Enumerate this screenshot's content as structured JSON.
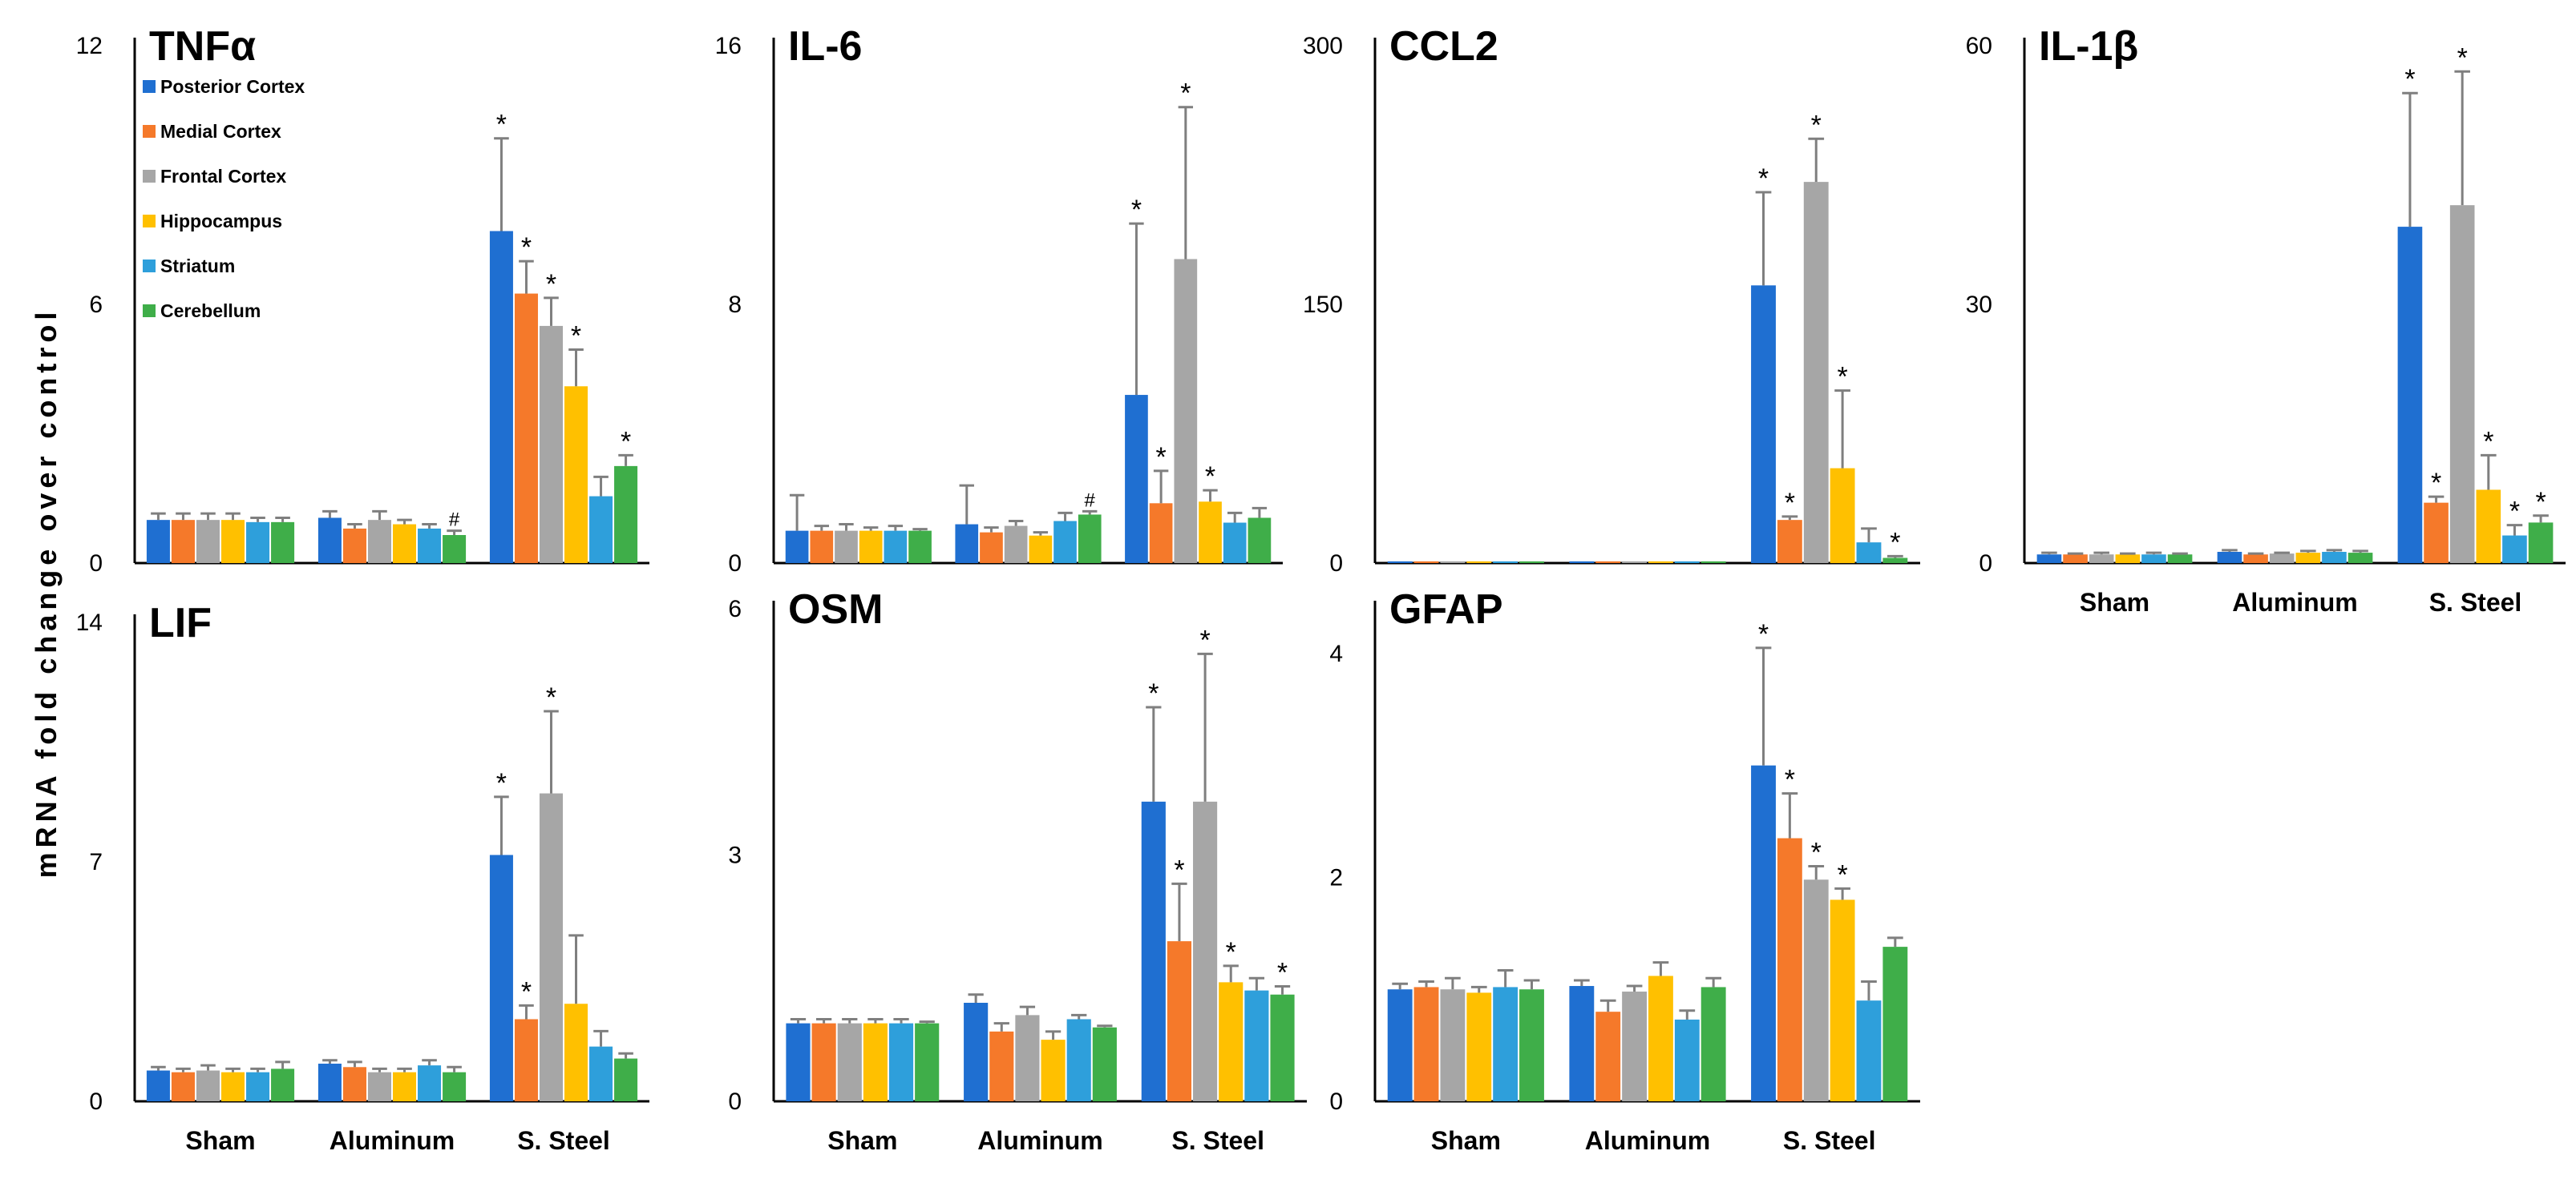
{
  "figure": {
    "ylabel": "mRNA fold change over control",
    "legend": [
      {
        "name": "Posterior Cortex",
        "color": "#1f6fd1"
      },
      {
        "name": "Medial Cortex",
        "color": "#f5792a"
      },
      {
        "name": "Frontal Cortex",
        "color": "#a6a6a6"
      },
      {
        "name": "Hippocampus",
        "color": "#ffc000"
      },
      {
        "name": "Striatum",
        "color": "#2e9fdb"
      },
      {
        "name": "Cerebellum",
        "color": "#3fae49"
      }
    ],
    "x_label_rows": [
      {
        "position": "top-row-under-IL-1β",
        "labels": [
          "Sham",
          "Aluminum",
          "S. Steel"
        ]
      },
      {
        "position": "bottom-row",
        "labels": [
          "Sham",
          "Aluminum",
          "S. Steel"
        ]
      }
    ]
  },
  "chart_data": [
    {
      "type": "bar",
      "title": "TNFα",
      "ylim": [
        0,
        12
      ],
      "yticks": [
        0,
        6,
        12
      ],
      "categories": [
        "Sham",
        "Aluminum",
        "S. Steel"
      ],
      "show_categories": false,
      "legend": true,
      "series": [
        {
          "name": "Posterior Cortex",
          "values": [
            1.0,
            1.05,
            7.7
          ],
          "errors": [
            0.15,
            0.15,
            2.15
          ],
          "marks": [
            "",
            "",
            "*"
          ]
        },
        {
          "name": "Medial Cortex",
          "values": [
            1.0,
            0.8,
            6.25
          ],
          "errors": [
            0.15,
            0.1,
            0.75
          ],
          "marks": [
            "",
            "",
            "*"
          ]
        },
        {
          "name": "Frontal Cortex",
          "values": [
            1.0,
            1.0,
            5.5
          ],
          "errors": [
            0.15,
            0.2,
            0.65
          ],
          "marks": [
            "",
            "",
            "*"
          ]
        },
        {
          "name": "Hippocampus",
          "values": [
            1.0,
            0.9,
            4.1
          ],
          "errors": [
            0.15,
            0.1,
            0.85
          ],
          "marks": [
            "",
            "",
            "*"
          ]
        },
        {
          "name": "Striatum",
          "values": [
            0.95,
            0.8,
            1.55
          ],
          "errors": [
            0.1,
            0.1,
            0.45
          ],
          "marks": [
            "",
            "",
            ""
          ]
        },
        {
          "name": "Cerebellum",
          "values": [
            0.95,
            0.65,
            2.25
          ],
          "errors": [
            0.1,
            0.1,
            0.25
          ],
          "marks": [
            "",
            "#",
            "*"
          ]
        }
      ]
    },
    {
      "type": "bar",
      "title": "IL-6",
      "ylim": [
        0,
        16
      ],
      "yticks": [
        0,
        8,
        16
      ],
      "categories": [
        "Sham",
        "Aluminum",
        "S. Steel"
      ],
      "show_categories": false,
      "series": [
        {
          "name": "Posterior Cortex",
          "values": [
            1.0,
            1.2,
            5.2
          ],
          "errors": [
            1.1,
            1.2,
            5.3
          ],
          "marks": [
            "",
            "",
            "*"
          ]
        },
        {
          "name": "Medial Cortex",
          "values": [
            1.0,
            0.95,
            1.85
          ],
          "errors": [
            0.15,
            0.15,
            1.0
          ],
          "marks": [
            "",
            "",
            "*"
          ]
        },
        {
          "name": "Frontal Cortex",
          "values": [
            1.0,
            1.15,
            9.4
          ],
          "errors": [
            0.2,
            0.15,
            4.7
          ],
          "marks": [
            "",
            "",
            "*"
          ]
        },
        {
          "name": "Hippocampus",
          "values": [
            1.0,
            0.85,
            1.9
          ],
          "errors": [
            0.1,
            0.1,
            0.35
          ],
          "marks": [
            "",
            "",
            "*"
          ]
        },
        {
          "name": "Striatum",
          "values": [
            1.0,
            1.3,
            1.25
          ],
          "errors": [
            0.15,
            0.25,
            0.3
          ],
          "marks": [
            "",
            "",
            ""
          ]
        },
        {
          "name": "Cerebellum",
          "values": [
            1.0,
            1.5,
            1.4
          ],
          "errors": [
            0.05,
            0.1,
            0.3
          ],
          "marks": [
            "",
            "#",
            ""
          ]
        }
      ]
    },
    {
      "type": "bar",
      "title": "CCL2",
      "ylim": [
        0,
        300
      ],
      "yticks": [
        0,
        150,
        300
      ],
      "categories": [
        "Sham",
        "Aluminum",
        "S. Steel"
      ],
      "show_categories": false,
      "series": [
        {
          "name": "Posterior Cortex",
          "values": [
            1,
            1,
            161
          ],
          "errors": [
            0,
            0,
            54
          ],
          "marks": [
            "",
            "",
            "*"
          ]
        },
        {
          "name": "Medial Cortex",
          "values": [
            1,
            1,
            25
          ],
          "errors": [
            0,
            0,
            2
          ],
          "marks": [
            "",
            "",
            "*"
          ]
        },
        {
          "name": "Frontal Cortex",
          "values": [
            1,
            1,
            221
          ],
          "errors": [
            0,
            0,
            25
          ],
          "marks": [
            "",
            "",
            "*"
          ]
        },
        {
          "name": "Hippocampus",
          "values": [
            1,
            1,
            55
          ],
          "errors": [
            0,
            0,
            45
          ],
          "marks": [
            "",
            "",
            "*"
          ]
        },
        {
          "name": "Striatum",
          "values": [
            1,
            1,
            12
          ],
          "errors": [
            0,
            0,
            8
          ],
          "marks": [
            "",
            "",
            ""
          ]
        },
        {
          "name": "Cerebellum",
          "values": [
            1,
            1,
            3
          ],
          "errors": [
            0,
            0,
            1
          ],
          "marks": [
            "",
            "",
            "*"
          ]
        }
      ]
    },
    {
      "type": "bar",
      "title": "IL-1β",
      "ylim": [
        0,
        60
      ],
      "yticks": [
        0,
        30,
        60
      ],
      "categories": [
        "Sham",
        "Aluminum",
        "S. Steel"
      ],
      "show_categories": true,
      "series": [
        {
          "name": "Posterior Cortex",
          "values": [
            1.0,
            1.3,
            39
          ],
          "errors": [
            0.2,
            0.2,
            15.5
          ],
          "marks": [
            "",
            "",
            "*"
          ]
        },
        {
          "name": "Medial Cortex",
          "values": [
            1.0,
            1.0,
            7
          ],
          "errors": [
            0.1,
            0.1,
            0.7
          ],
          "marks": [
            "",
            "",
            "*"
          ]
        },
        {
          "name": "Frontal Cortex",
          "values": [
            1.0,
            1.1,
            41.5
          ],
          "errors": [
            0.2,
            0.1,
            15.5
          ],
          "marks": [
            "",
            "",
            "*"
          ]
        },
        {
          "name": "Hippocampus",
          "values": [
            1.0,
            1.2,
            8.5
          ],
          "errors": [
            0.1,
            0.2,
            4
          ],
          "marks": [
            "",
            "",
            "*"
          ]
        },
        {
          "name": "Striatum",
          "values": [
            1.0,
            1.3,
            3.2
          ],
          "errors": [
            0.2,
            0.2,
            1.2
          ],
          "marks": [
            "",
            "",
            "*"
          ]
        },
        {
          "name": "Cerebellum",
          "values": [
            1.0,
            1.2,
            4.7
          ],
          "errors": [
            0.1,
            0.2,
            0.8
          ],
          "marks": [
            "",
            "",
            "*"
          ]
        }
      ]
    },
    {
      "type": "bar",
      "title": "LIF",
      "ylim": [
        0,
        14
      ],
      "yticks": [
        0,
        7,
        14
      ],
      "categories": [
        "Sham",
        "Aluminum",
        "S. Steel"
      ],
      "show_categories": true,
      "series": [
        {
          "name": "Posterior Cortex",
          "values": [
            0.9,
            1.1,
            7.2
          ],
          "errors": [
            0.1,
            0.1,
            1.7
          ],
          "marks": [
            "",
            "",
            "*"
          ]
        },
        {
          "name": "Medial Cortex",
          "values": [
            0.85,
            1.0,
            2.4
          ],
          "errors": [
            0.1,
            0.15,
            0.4
          ],
          "marks": [
            "",
            "",
            "*"
          ]
        },
        {
          "name": "Frontal Cortex",
          "values": [
            0.9,
            0.85,
            9.0
          ],
          "errors": [
            0.15,
            0.1,
            2.4
          ],
          "marks": [
            "",
            "",
            "*"
          ]
        },
        {
          "name": "Hippocampus",
          "values": [
            0.85,
            0.85,
            2.85
          ],
          "errors": [
            0.1,
            0.1,
            2.0
          ],
          "marks": [
            "",
            "",
            ""
          ]
        },
        {
          "name": "Striatum",
          "values": [
            0.85,
            1.05,
            1.6
          ],
          "errors": [
            0.1,
            0.15,
            0.45
          ],
          "marks": [
            "",
            "",
            ""
          ]
        },
        {
          "name": "Cerebellum",
          "values": [
            0.95,
            0.85,
            1.25
          ],
          "errors": [
            0.2,
            0.15,
            0.15
          ],
          "marks": [
            "",
            "",
            ""
          ]
        }
      ]
    },
    {
      "type": "bar",
      "title": "OSM",
      "ylim": [
        0,
        6
      ],
      "yticks": [
        0,
        3,
        6
      ],
      "categories": [
        "Sham",
        "Aluminum",
        "S. Steel"
      ],
      "show_categories": true,
      "series": [
        {
          "name": "Posterior Cortex",
          "values": [
            0.95,
            1.2,
            3.65
          ],
          "errors": [
            0.05,
            0.1,
            1.15
          ],
          "marks": [
            "",
            "",
            "*"
          ]
        },
        {
          "name": "Medial Cortex",
          "values": [
            0.95,
            0.85,
            1.95
          ],
          "errors": [
            0.05,
            0.1,
            0.7
          ],
          "marks": [
            "",
            "",
            "*"
          ]
        },
        {
          "name": "Frontal Cortex",
          "values": [
            0.95,
            1.05,
            3.65
          ],
          "errors": [
            0.05,
            0.1,
            1.8
          ],
          "marks": [
            "",
            "",
            "*"
          ]
        },
        {
          "name": "Hippocampus",
          "values": [
            0.95,
            0.75,
            1.45
          ],
          "errors": [
            0.05,
            0.1,
            0.2
          ],
          "marks": [
            "",
            "",
            "*"
          ]
        },
        {
          "name": "Striatum",
          "values": [
            0.95,
            1.0,
            1.35
          ],
          "errors": [
            0.05,
            0.05,
            0.15
          ],
          "marks": [
            "",
            "",
            ""
          ]
        },
        {
          "name": "Cerebellum",
          "values": [
            0.95,
            0.9,
            1.3
          ],
          "errors": [
            0.02,
            0.02,
            0.1
          ],
          "marks": [
            "",
            "",
            "*"
          ]
        }
      ]
    },
    {
      "type": "bar",
      "title": "GFAP",
      "ylim": [
        0,
        4.4
      ],
      "yticks": [
        0,
        2,
        4
      ],
      "categories": [
        "Sham",
        "Aluminum",
        "S. Steel"
      ],
      "show_categories": true,
      "series": [
        {
          "name": "Posterior Cortex",
          "values": [
            1.0,
            1.03,
            3.0
          ],
          "errors": [
            0.05,
            0.05,
            1.05
          ],
          "marks": [
            "",
            "",
            "*"
          ]
        },
        {
          "name": "Medial Cortex",
          "values": [
            1.02,
            0.8,
            2.35
          ],
          "errors": [
            0.05,
            0.1,
            0.4
          ],
          "marks": [
            "",
            "",
            "*"
          ]
        },
        {
          "name": "Frontal Cortex",
          "values": [
            1.0,
            0.98,
            1.98
          ],
          "errors": [
            0.1,
            0.05,
            0.12
          ],
          "marks": [
            "",
            "",
            "*"
          ]
        },
        {
          "name": "Hippocampus",
          "values": [
            0.97,
            1.12,
            1.8
          ],
          "errors": [
            0.05,
            0.12,
            0.1
          ],
          "marks": [
            "",
            "",
            "*"
          ]
        },
        {
          "name": "Striatum",
          "values": [
            1.02,
            0.73,
            0.9
          ],
          "errors": [
            0.15,
            0.08,
            0.17
          ],
          "marks": [
            "",
            "",
            ""
          ]
        },
        {
          "name": "Cerebellum",
          "values": [
            1.0,
            1.02,
            1.38
          ],
          "errors": [
            0.08,
            0.08,
            0.08
          ],
          "marks": [
            "",
            "",
            ""
          ]
        }
      ]
    }
  ]
}
